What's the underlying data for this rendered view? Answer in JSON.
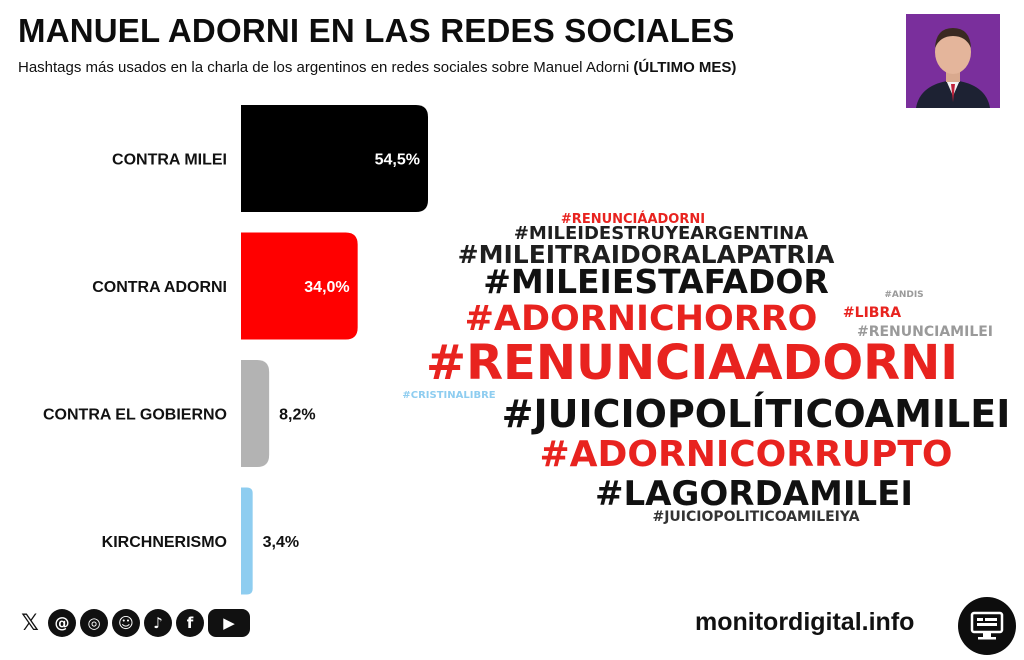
{
  "header": {
    "title": "MANUEL ADORNI EN LAS REDES SOCIALES",
    "subtitle": "Hashtags más usados en la charla de los argentinos en redes sociales sobre Manuel Adorni",
    "subtitle_bold": "(ÚLTIMO MES)"
  },
  "chart_data": {
    "type": "bar",
    "orientation": "horizontal",
    "title": "MANUEL ADORNI EN LAS REDES SOCIALES",
    "subtitle": "Hashtags más usados en la charla de los argentinos en redes sociales sobre Manuel Adorni (ÚLTIMO MES)",
    "categories": [
      "CONTRA MILEI",
      "CONTRA ADORNI",
      "CONTRA EL GOBIERNO",
      "KIRCHNERISMO"
    ],
    "values": [
      54.5,
      34.0,
      8.2,
      3.4
    ],
    "value_labels": [
      "54,5%",
      "34,0%",
      "8,2%",
      "3,4%"
    ],
    "colors": [
      "#000000",
      "#ff0000",
      "#b3b3b3",
      "#8ecdf0"
    ],
    "xlabel": "",
    "ylabel": "",
    "grid": false,
    "legend": "none"
  },
  "word_cloud": [
    {
      "text": "#RENUNCIÁADORNI",
      "color": "#e8231f"
    },
    {
      "text": "#MILEIDESTRUYEARGENTINA",
      "color": "#1f1f1f"
    },
    {
      "text": "#MILEITRAIDORALAPATRIA",
      "color": "#1f1f1f"
    },
    {
      "text": "#MILEIESTAFADOR",
      "color": "#111111"
    },
    {
      "text": "#ANDIS",
      "color": "#9a9a9a"
    },
    {
      "text": "#ADORNICHORRO",
      "color": "#e8231f"
    },
    {
      "text": "#LIBRA",
      "color": "#e8231f"
    },
    {
      "text": "#RENUNCIAMILEI",
      "color": "#9a9a9a"
    },
    {
      "text": "#RENUNCIAADORNI",
      "color": "#e8231f"
    },
    {
      "text": "#CRISTINALIBRE",
      "color": "#8ecdf0"
    },
    {
      "text": "#JUICIOPOLÍTICOAMILEI",
      "color": "#111111"
    },
    {
      "text": "#ADORNICORRUPTO",
      "color": "#e8231f"
    },
    {
      "text": "#LAGORDAMILEI",
      "color": "#111111"
    },
    {
      "text": "#JUICIOPOLITICOAMILEIYA",
      "color": "#333333"
    }
  ],
  "footer": {
    "brand": "monitordigital.info",
    "social_icons": [
      "x-icon",
      "threads-icon",
      "instagram-icon",
      "reddit-icon",
      "tiktok-icon",
      "facebook-icon",
      "youtube-icon"
    ]
  }
}
